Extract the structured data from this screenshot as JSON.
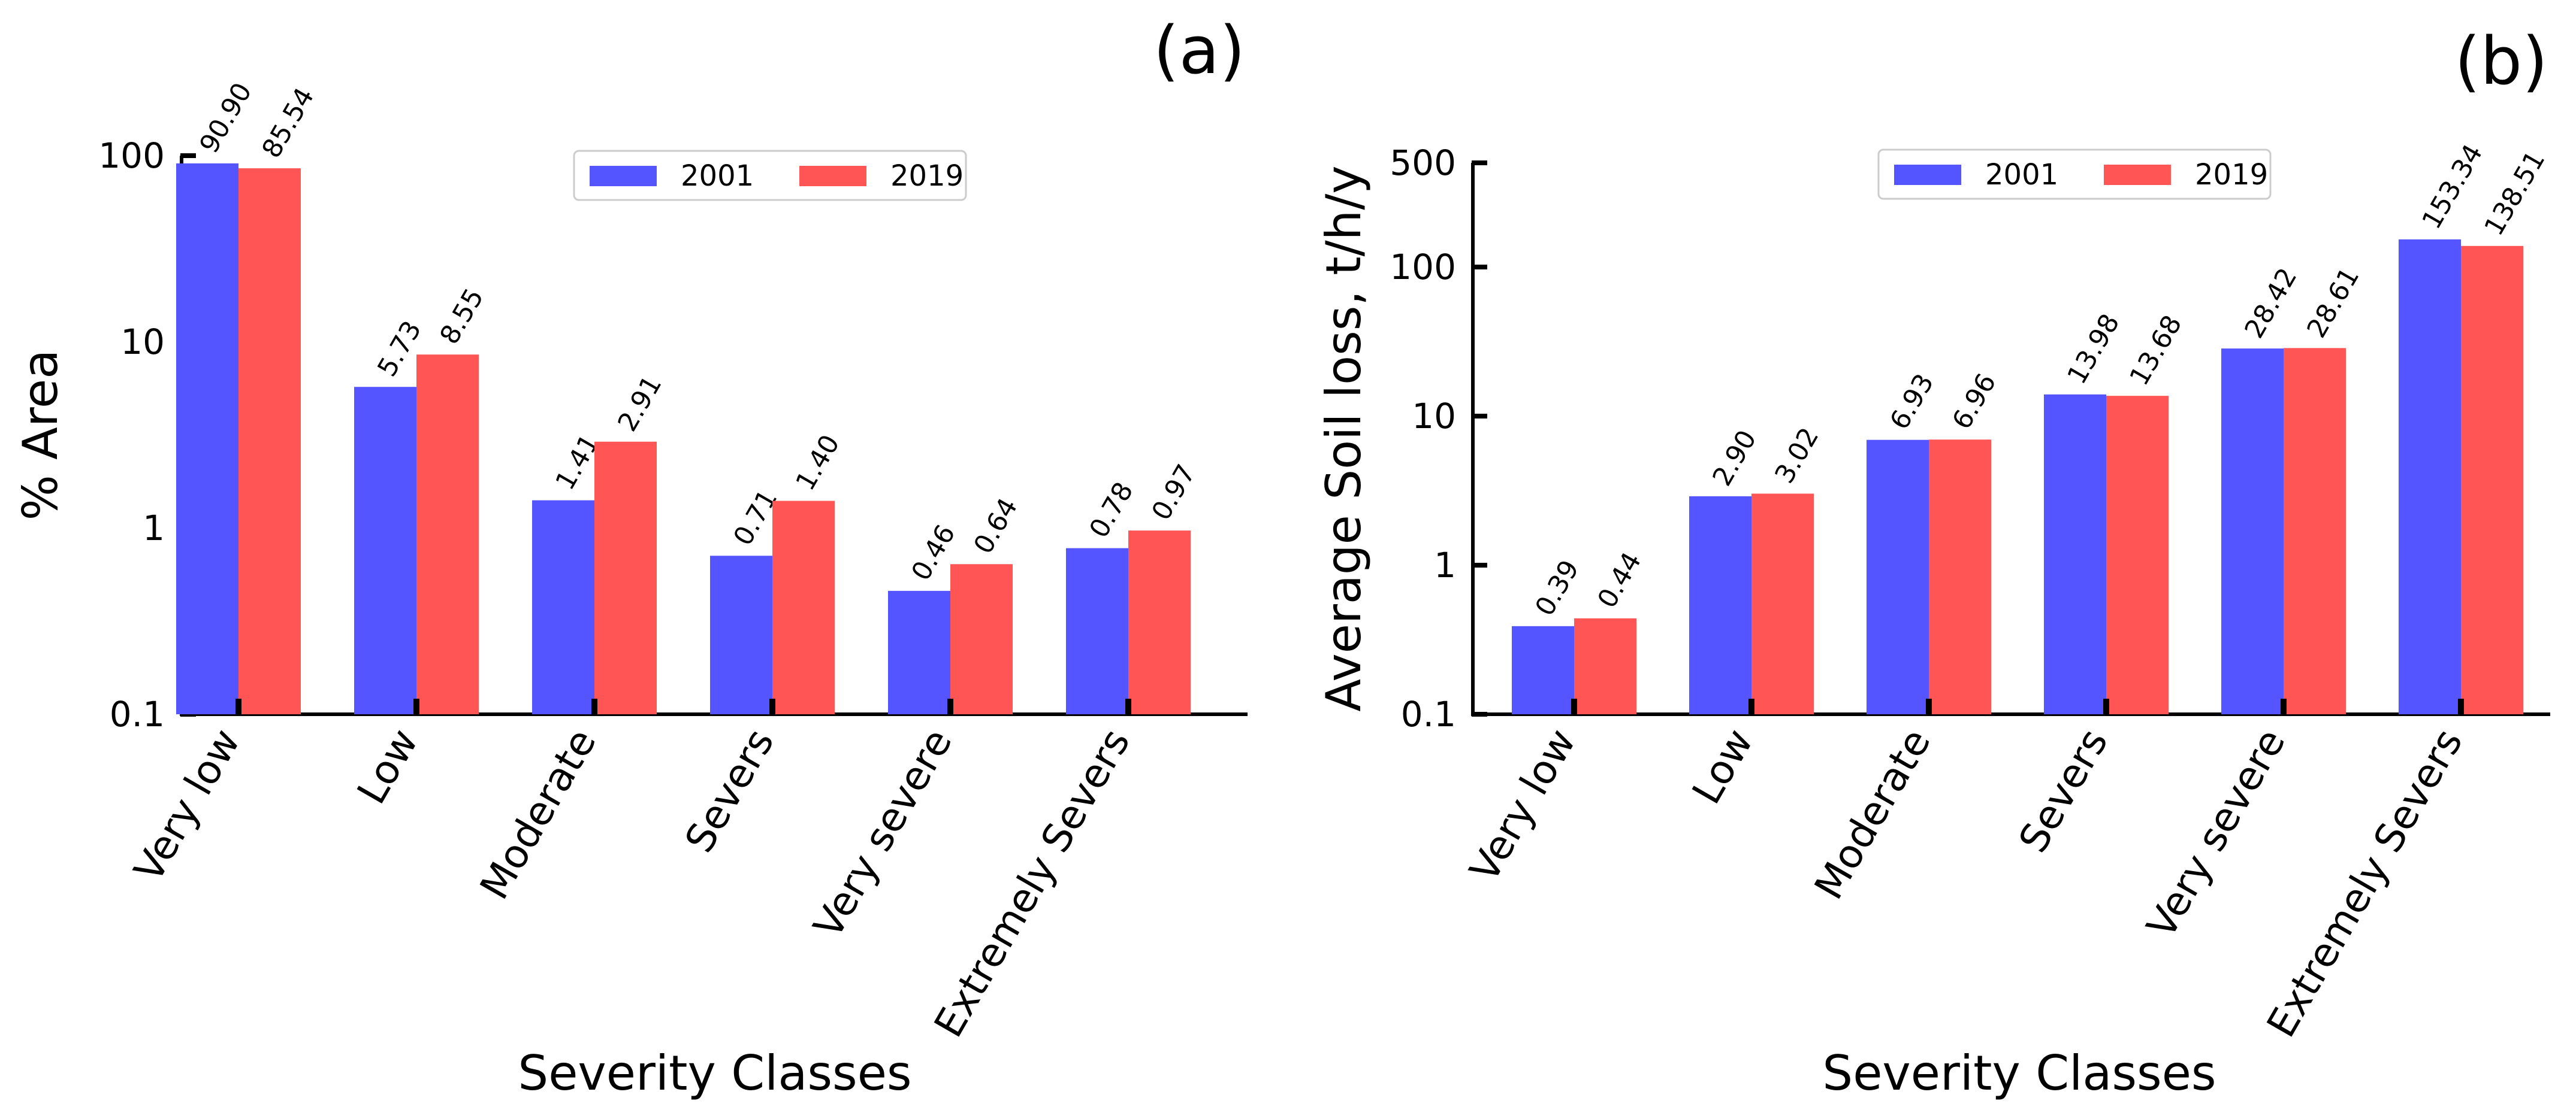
{
  "chart_data": [
    {
      "type": "bar",
      "panel_label": "(a)",
      "title": "",
      "xlabel": "Severity Classes",
      "ylabel": "% Area",
      "yscale": "log",
      "ylim": [
        0.1,
        100
      ],
      "yticks": [
        {
          "value": 0.1,
          "label": "0.1"
        },
        {
          "value": 1,
          "label": "1"
        },
        {
          "value": 10,
          "label": "10"
        },
        {
          "value": 100,
          "label": "100"
        }
      ],
      "categories": [
        "Very low",
        "Low",
        "Moderate",
        "Severs",
        "Very severe",
        "Extremely Severs"
      ],
      "series": [
        {
          "name": "2001",
          "color": "#5555ff",
          "values": [
            90.9,
            5.73,
            1.41,
            0.71,
            0.46,
            0.78
          ],
          "labels": [
            "90.90",
            "5.73",
            "1.41",
            "0.71",
            "0.46",
            "0.78"
          ]
        },
        {
          "name": "2019",
          "color": "#ff5555",
          "values": [
            85.54,
            8.55,
            2.91,
            1.4,
            0.64,
            0.97
          ],
          "labels": [
            "85.54",
            "8.55",
            "2.91",
            "1.40",
            "0.64",
            "0.97"
          ]
        }
      ],
      "legend": {
        "position": "top-right",
        "entries": [
          "2001",
          "2019"
        ]
      },
      "grid": false
    },
    {
      "type": "bar",
      "panel_label": "(b)",
      "title": "",
      "xlabel": "Severity Classes",
      "ylabel": "Average Soil loss, t/h/y",
      "yscale": "log",
      "ylim": [
        0.1,
        500
      ],
      "yticks": [
        {
          "value": 0.1,
          "label": "0.1"
        },
        {
          "value": 1,
          "label": "1"
        },
        {
          "value": 10,
          "label": "10"
        },
        {
          "value": 100,
          "label": "100"
        },
        {
          "value": 500,
          "label": "500"
        }
      ],
      "categories": [
        "Very low",
        "Low",
        "Moderate",
        "Severs",
        "Very severe",
        "Extremely Severs"
      ],
      "series": [
        {
          "name": "2001",
          "color": "#5555ff",
          "values": [
            0.39,
            2.9,
            6.93,
            13.98,
            28.42,
            153.34
          ],
          "labels": [
            "0.39",
            "2.90",
            "6.93",
            "13.98",
            "28.42",
            "153.34"
          ]
        },
        {
          "name": "2019",
          "color": "#ff5555",
          "values": [
            0.44,
            3.02,
            6.96,
            13.68,
            28.61,
            138.51
          ],
          "labels": [
            "0.44",
            "3.02",
            "6.96",
            "13.68",
            "28.61",
            "138.51"
          ]
        }
      ],
      "legend": {
        "position": "top-center",
        "entries": [
          "2001",
          "2019"
        ]
      },
      "grid": false
    }
  ]
}
